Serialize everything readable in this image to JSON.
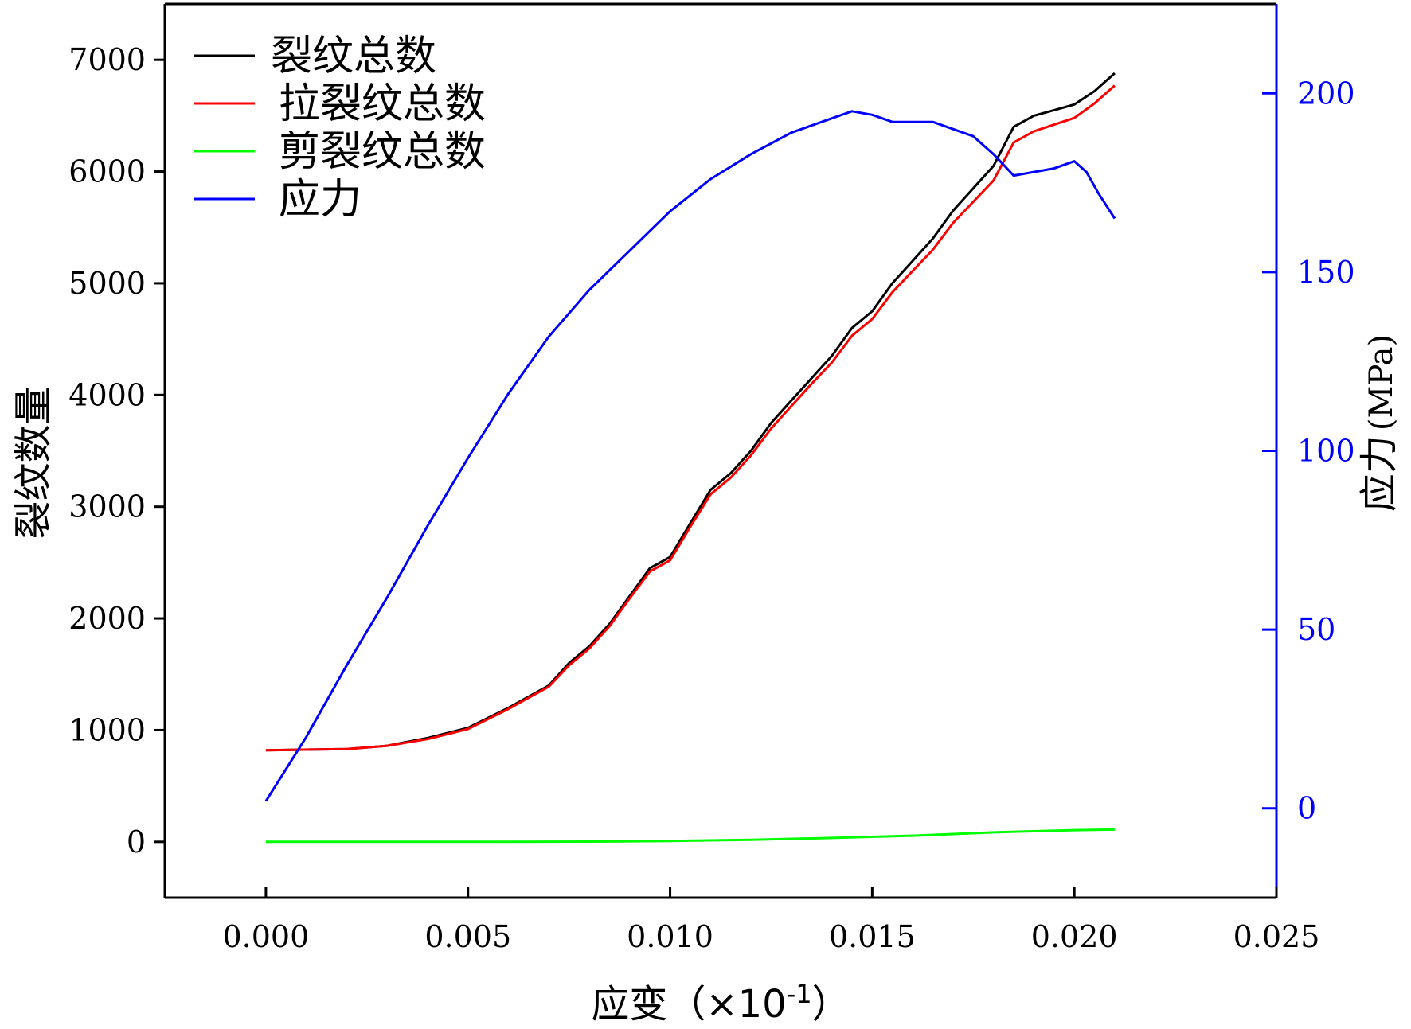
{
  "chart_data": {
    "type": "line",
    "xlabel": "应变（×10",
    "xlabel_exponent": "-1",
    "xlabel_close": "）",
    "ylabel_left": "裂纹数量",
    "ylabel_right": "应力",
    "ylabel_right_unit": "(MPa)",
    "xlim": [
      -0.0025,
      0.025
    ],
    "ylim_left": [
      -500,
      7500
    ],
    "ylim_right": [
      -25,
      225
    ],
    "x_ticks": [
      "0.000",
      "0.005",
      "0.010",
      "0.015",
      "0.020",
      "0.025"
    ],
    "x_tick_values": [
      0,
      0.005,
      0.01,
      0.015,
      0.02,
      0.025
    ],
    "y_left_ticks": [
      "0",
      "1000",
      "2000",
      "3000",
      "4000",
      "5000",
      "6000",
      "7000"
    ],
    "y_left_tick_values": [
      0,
      1000,
      2000,
      3000,
      4000,
      5000,
      6000,
      7000
    ],
    "y_right_ticks": [
      "0",
      "50",
      "100",
      "150",
      "200"
    ],
    "y_right_tick_values": [
      0,
      50,
      100,
      150,
      200
    ],
    "right_axis_color": "#0000ff",
    "legend_position": "top-left",
    "series": [
      {
        "name": "裂纹总数",
        "axis": "left",
        "color": "#000000",
        "x": [
          0,
          0.002,
          0.003,
          0.004,
          0.005,
          0.006,
          0.007,
          0.0075,
          0.008,
          0.0085,
          0.009,
          0.0095,
          0.01,
          0.0105,
          0.011,
          0.0115,
          0.012,
          0.0125,
          0.013,
          0.0135,
          0.014,
          0.0145,
          0.015,
          0.0155,
          0.016,
          0.0165,
          0.017,
          0.0175,
          0.018,
          0.0185,
          0.019,
          0.0195,
          0.02,
          0.0205,
          0.021
        ],
        "y": [
          820,
          830,
          860,
          930,
          1020,
          1200,
          1400,
          1600,
          1750,
          1950,
          2200,
          2450,
          2550,
          2850,
          3150,
          3300,
          3500,
          3750,
          3950,
          4150,
          4350,
          4600,
          4750,
          5000,
          5200,
          5400,
          5650,
          5850,
          6050,
          6400,
          6500,
          6550,
          6600,
          6720,
          6880
        ]
      },
      {
        "name": "拉裂纹总数",
        "axis": "left",
        "color": "#ff0000",
        "x": [
          0,
          0.002,
          0.003,
          0.004,
          0.005,
          0.006,
          0.007,
          0.0075,
          0.008,
          0.0085,
          0.009,
          0.0095,
          0.01,
          0.0105,
          0.011,
          0.0115,
          0.012,
          0.0125,
          0.013,
          0.0135,
          0.014,
          0.0145,
          0.015,
          0.0155,
          0.016,
          0.0165,
          0.017,
          0.0175,
          0.018,
          0.0185,
          0.019,
          0.0195,
          0.02,
          0.0205,
          0.021
        ],
        "y": [
          820,
          830,
          860,
          920,
          1010,
          1190,
          1390,
          1580,
          1730,
          1930,
          2180,
          2420,
          2520,
          2820,
          3110,
          3260,
          3460,
          3700,
          3900,
          4100,
          4290,
          4530,
          4680,
          4920,
          5110,
          5300,
          5540,
          5730,
          5920,
          6260,
          6360,
          6420,
          6480,
          6610,
          6770
        ]
      },
      {
        "name": "剪裂纹总数",
        "axis": "left",
        "color": "#00ff00",
        "x": [
          0,
          0.002,
          0.004,
          0.006,
          0.008,
          0.01,
          0.012,
          0.014,
          0.016,
          0.018,
          0.02,
          0.021
        ],
        "y": [
          0,
          0,
          0,
          0,
          2,
          8,
          18,
          35,
          55,
          85,
          105,
          110
        ]
      },
      {
        "name": "应力",
        "axis": "right",
        "color": "#0000ff",
        "x": [
          0,
          0.001,
          0.002,
          0.003,
          0.004,
          0.005,
          0.006,
          0.007,
          0.008,
          0.009,
          0.01,
          0.011,
          0.012,
          0.013,
          0.014,
          0.0145,
          0.015,
          0.0155,
          0.016,
          0.0165,
          0.017,
          0.0175,
          0.018,
          0.0185,
          0.019,
          0.0195,
          0.02,
          0.0203,
          0.0206,
          0.021
        ],
        "y": [
          2,
          20,
          40,
          59,
          79,
          98,
          116,
          132,
          145,
          156,
          167,
          176,
          183,
          189,
          193,
          195,
          194,
          192,
          192,
          192,
          190,
          188,
          183,
          177,
          178,
          179,
          181,
          178,
          172,
          165
        ]
      }
    ]
  }
}
